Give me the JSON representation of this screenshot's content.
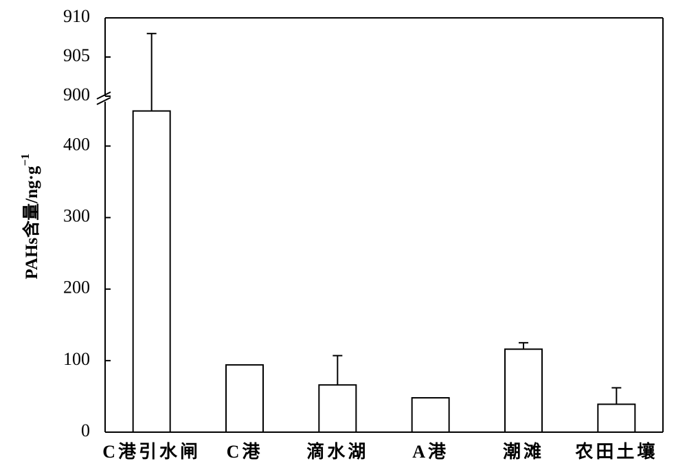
{
  "chart_data": {
    "type": "bar",
    "y_label": "PAHs含量/ng·g",
    "y_label_sup": "−1",
    "categories": [
      "C港引水闸",
      "C港",
      "滴水湖",
      "A港",
      "潮滩",
      "农田土壤"
    ],
    "values": [
      449,
      94,
      66,
      48,
      116,
      39
    ],
    "errors": [
      459,
      null,
      41,
      null,
      9,
      23
    ],
    "color": "#ffffff",
    "ylim": [
      0,
      910
    ],
    "y_break": [
      462,
      900
    ],
    "yticks": [
      0,
      100,
      200,
      300,
      400,
      900,
      905,
      910
    ]
  }
}
